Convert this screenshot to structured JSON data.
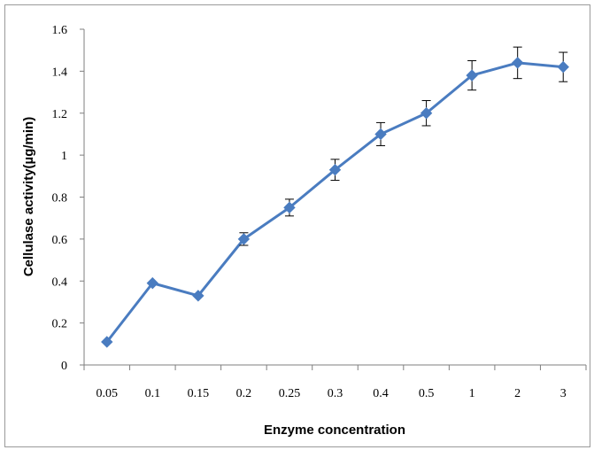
{
  "chart_data": {
    "type": "line",
    "title": "",
    "xlabel": "Enzyme concentration",
    "ylabel": "Cellulase activity(µg/min)",
    "categories": [
      "0.05",
      "0.1",
      "0.15",
      "0.2",
      "0.25",
      "0.3",
      "0.4",
      "0.5",
      "1",
      "2",
      "3"
    ],
    "series": [
      {
        "values": [
          0.11,
          0.39,
          0.33,
          0.6,
          0.75,
          0.93,
          1.1,
          1.2,
          1.38,
          1.44,
          1.42
        ],
        "error": [
          0.0,
          0.0,
          0.0,
          0.03,
          0.04,
          0.05,
          0.055,
          0.06,
          0.07,
          0.075,
          0.07
        ],
        "color": "#4a7cc0",
        "marker": "diamond"
      }
    ],
    "ylim": [
      0,
      1.6
    ],
    "yticks": [
      "0",
      "0.2",
      "0.4",
      "0.6",
      "0.8",
      "1",
      "1.2",
      "1.4",
      "1.6"
    ],
    "grid": false,
    "legend": "none"
  }
}
